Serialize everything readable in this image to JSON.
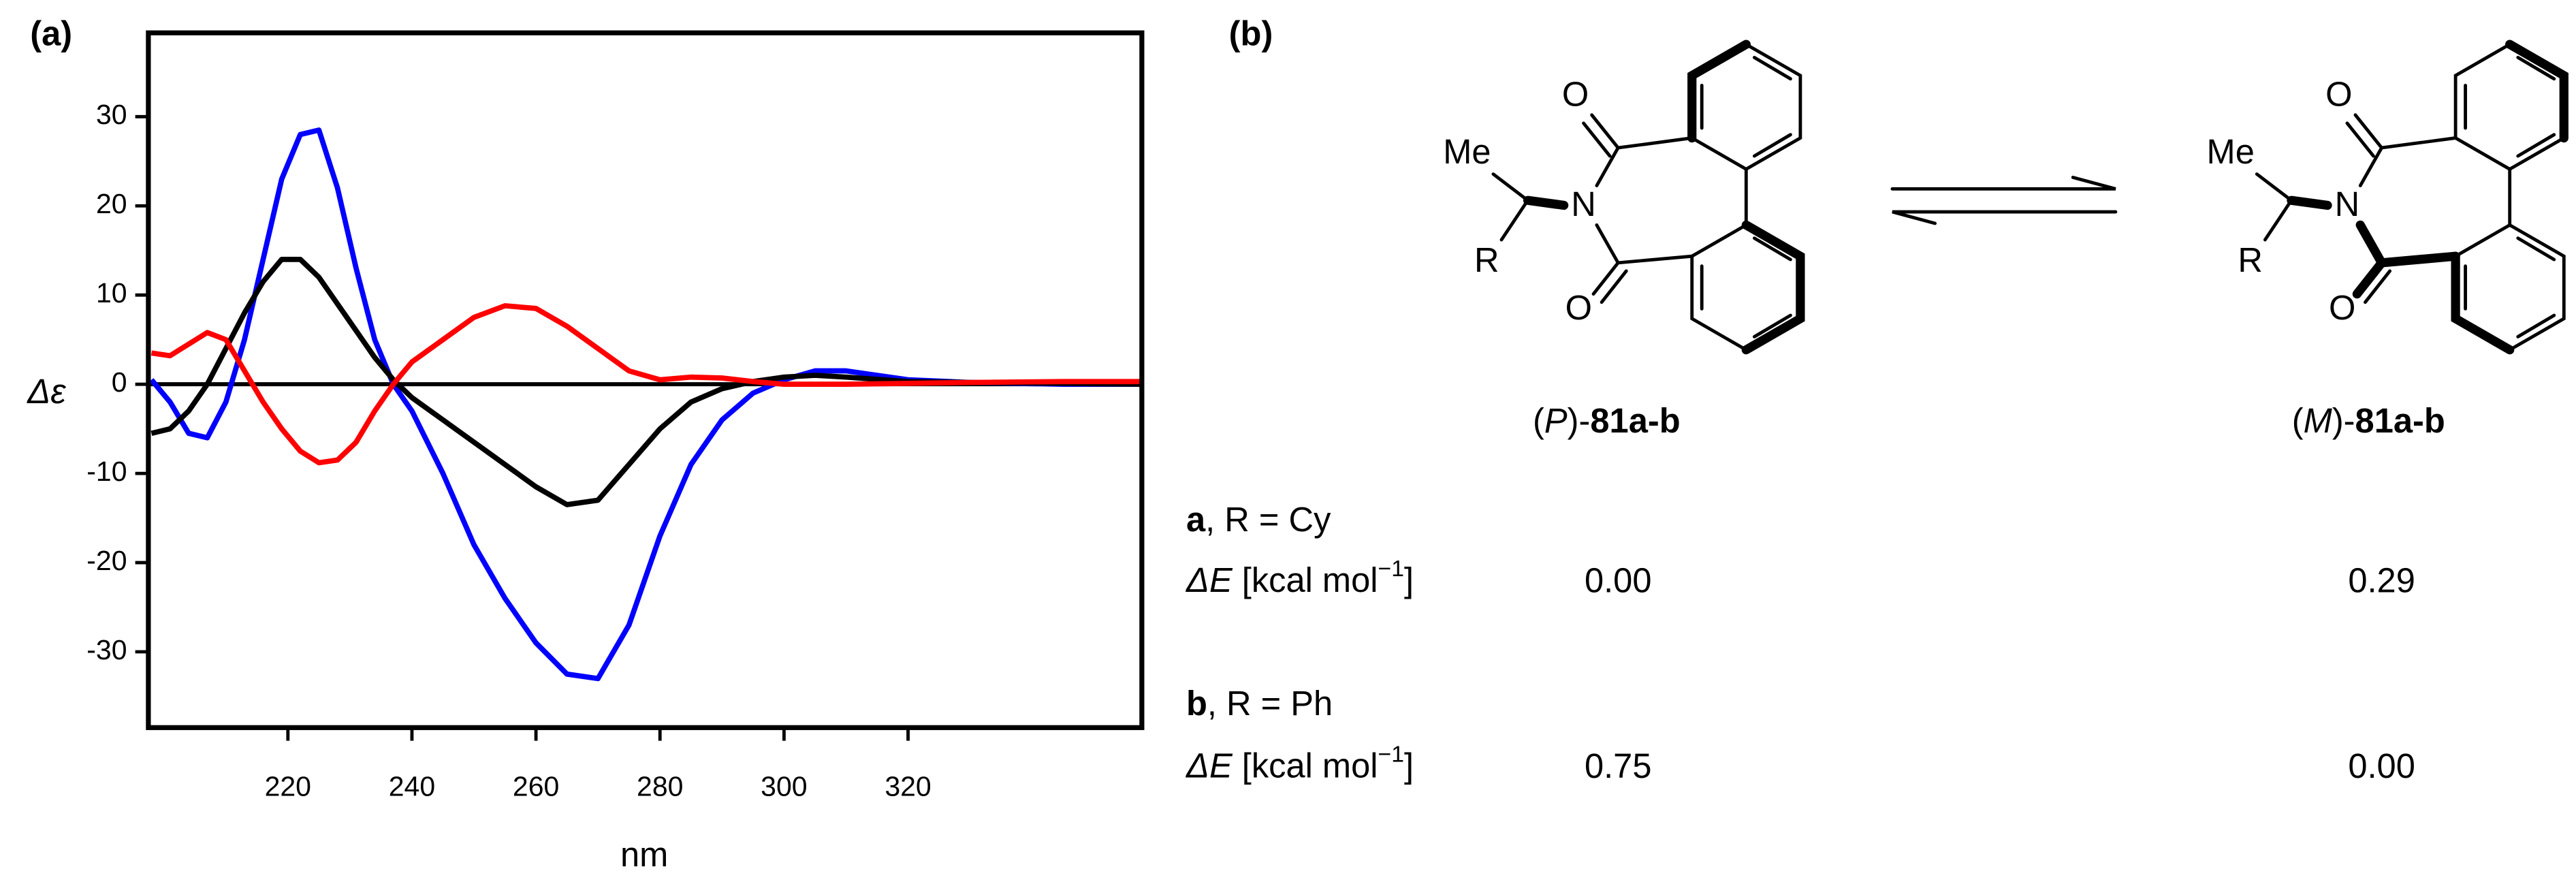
{
  "chart_data": {
    "type": "line",
    "panel_label": "(a)",
    "x_label": "nm",
    "y_label": "Δε",
    "x": [
      198,
      201,
      204,
      207,
      210,
      213,
      216,
      219,
      222,
      225,
      228,
      231,
      234,
      237,
      240,
      245,
      250,
      255,
      260,
      265,
      270,
      275,
      280,
      285,
      290,
      295,
      300,
      305,
      310,
      320,
      330,
      345,
      358
    ],
    "series": [
      {
        "color": "#0000ff",
        "values": [
          0.5,
          -2,
          -5.5,
          -6,
          -2,
          5,
          14,
          23,
          28,
          28.5,
          22,
          13,
          5,
          0,
          -3,
          -10,
          -18,
          -24,
          -29,
          -32.5,
          -33,
          -27,
          -17,
          -9,
          -4,
          -1,
          0.5,
          1.5,
          1.5,
          0.5,
          0.2,
          0,
          0
        ]
      },
      {
        "color": "#000000",
        "values": [
          -5.5,
          -5,
          -3,
          0,
          4,
          8,
          11.5,
          14,
          14,
          12,
          9,
          6,
          3,
          0.5,
          -1.5,
          -4,
          -6.5,
          -9,
          -11.5,
          -13.5,
          -13,
          -9,
          -5,
          -2,
          -0.5,
          0.3,
          0.8,
          1,
          0.8,
          0.3,
          0.2,
          0.1,
          0
        ]
      },
      {
        "color": "#ff0000",
        "values": [
          3.5,
          3.2,
          4.5,
          5.8,
          5,
          1.5,
          -2,
          -5,
          -7.5,
          -8.8,
          -8.5,
          -6.5,
          -3,
          0,
          2.5,
          5,
          7.5,
          8.8,
          8.5,
          6.5,
          4,
          1.5,
          0.5,
          0.8,
          0.7,
          0.3,
          0,
          0,
          0,
          0.1,
          0.2,
          0.3,
          0.3
        ]
      }
    ],
    "xlim": [
      197.5,
      357.7
    ],
    "ylim": [
      -38.5,
      39.4
    ],
    "xticks": [
      220,
      240,
      260,
      280,
      300,
      320
    ],
    "yticks": [
      30,
      20,
      10,
      0,
      -10,
      -20,
      -30
    ]
  },
  "scheme": {
    "panel_label": "(b)",
    "left": {
      "atoms": [
        "Me",
        "N",
        "O",
        "O",
        "R"
      ],
      "caption": [
        "(",
        "P",
        ")-",
        "81a-b"
      ]
    },
    "right": {
      "atoms": [
        "Me",
        "N",
        "O",
        "O",
        "R"
      ],
      "caption": [
        "(",
        "M",
        ")-",
        "81a-b"
      ]
    },
    "rows": [
      {
        "compound": "a",
        "substituent": ", R = Cy",
        "energy_label": [
          "ΔE",
          " [kcal mol",
          "−1",
          "]"
        ],
        "energies": [
          "0.00",
          "0.29"
        ]
      },
      {
        "compound": "b",
        "substituent": ", R = Ph",
        "energy_label": [
          "ΔE",
          " [kcal mol",
          "−1",
          "]"
        ],
        "energies": [
          "0.75",
          "0.00"
        ]
      }
    ]
  }
}
